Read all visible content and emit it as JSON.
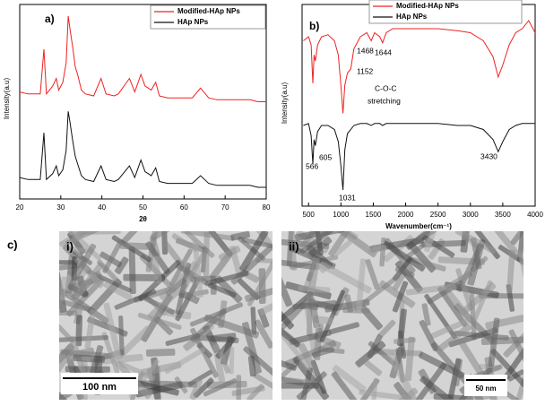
{
  "chart_data": [
    {
      "type": "line",
      "label": "a)",
      "x_label": "2θ",
      "y_label": "Intensity(a.u)",
      "x": [
        20,
        22,
        24,
        25,
        25.9,
        26.5,
        28,
        28.9,
        29.5,
        30.5,
        31.3,
        31.8,
        32.2,
        32.9,
        33.5,
        34.1,
        35,
        36,
        38,
        39.8,
        41,
        43,
        44,
        46.7,
        48,
        49.5,
        50.5,
        51.3,
        52,
        53.1,
        54,
        56,
        58,
        60,
        62,
        64,
        66,
        68,
        70,
        72,
        74,
        76,
        78,
        80
      ],
      "series": [
        {
          "name": "Modified-HAp NPs",
          "color": "#ee2222",
          "values": [
            55,
            54,
            54,
            54,
            77,
            54,
            58,
            62,
            56,
            60,
            70,
            94,
            88,
            78,
            68,
            64,
            56,
            54,
            53,
            62,
            54,
            53,
            54,
            62,
            55,
            64,
            58,
            57,
            56,
            60,
            53,
            52,
            52,
            52,
            52,
            57,
            52,
            51,
            51,
            51,
            51,
            51,
            50,
            50
          ]
        },
        {
          "name": "HAp NPs",
          "color": "#111111",
          "values": [
            11,
            10,
            10,
            10,
            34,
            10,
            13,
            17,
            12,
            15,
            25,
            45,
            40,
            30,
            22,
            18,
            12,
            10,
            9,
            17,
            10,
            9,
            10,
            17,
            11,
            20,
            14,
            13,
            12,
            16,
            9,
            8,
            8,
            8,
            8,
            12,
            8,
            7,
            7,
            7,
            7,
            7,
            6,
            6
          ]
        }
      ],
      "xlim": [
        20,
        80
      ],
      "xticks": [
        20,
        30,
        40,
        50,
        60,
        70,
        80
      ],
      "ylim": [
        0,
        100
      ],
      "grid": false,
      "legend": "top-right"
    },
    {
      "type": "line",
      "label": "b)",
      "x_label": "Wavenumber(cm⁻¹)",
      "y_label": "Intensity(a.u)",
      "x": [
        420,
        500,
        540,
        566,
        585,
        605,
        640,
        700,
        800,
        900,
        960,
        1000,
        1031,
        1060,
        1100,
        1152,
        1200,
        1300,
        1400,
        1468,
        1520,
        1600,
        1644,
        1700,
        1800,
        2000,
        2200,
        2500,
        2800,
        3000,
        3200,
        3350,
        3430,
        3500,
        3600,
        3700,
        3800,
        3900,
        4000
      ],
      "series": [
        {
          "name": "Modified-HAp NPs",
          "color": "#ee2222",
          "values": [
            82,
            84,
            80,
            61,
            75,
            72,
            80,
            84,
            85,
            82,
            75,
            60,
            46,
            60,
            66,
            68,
            78,
            84,
            86,
            82,
            86,
            84,
            81,
            86,
            88,
            88,
            88,
            88,
            87,
            86,
            82,
            74,
            64,
            70,
            80,
            86,
            88,
            92,
            86
          ]
        },
        {
          "name": "HAp NPs",
          "color": "#111111",
          "values": [
            40,
            41,
            35,
            21,
            33,
            30,
            37,
            40,
            40,
            38,
            32,
            20,
            8,
            28,
            36,
            38,
            40,
            41,
            41,
            40,
            41,
            41,
            40,
            41,
            41,
            41,
            41,
            41,
            40,
            40,
            38,
            33,
            27,
            32,
            38,
            40,
            41,
            41,
            41
          ]
        }
      ],
      "annotations": [
        "1468",
        "1644",
        "1152",
        "C-O-C",
        "stretching",
        "566",
        "605",
        "1031",
        "3430"
      ],
      "xlim": [
        400,
        4000
      ],
      "xticks": [
        500,
        1000,
        1500,
        2000,
        2500,
        3000,
        3500,
        4000
      ],
      "ylim": [
        0,
        100
      ],
      "grid": false,
      "legend": "top-right"
    }
  ],
  "panel_c": {
    "label": "c)",
    "images": [
      {
        "label": "i)",
        "scale_bar": "100 nm"
      },
      {
        "label": "ii)",
        "scale_bar": "50 nm"
      }
    ]
  }
}
